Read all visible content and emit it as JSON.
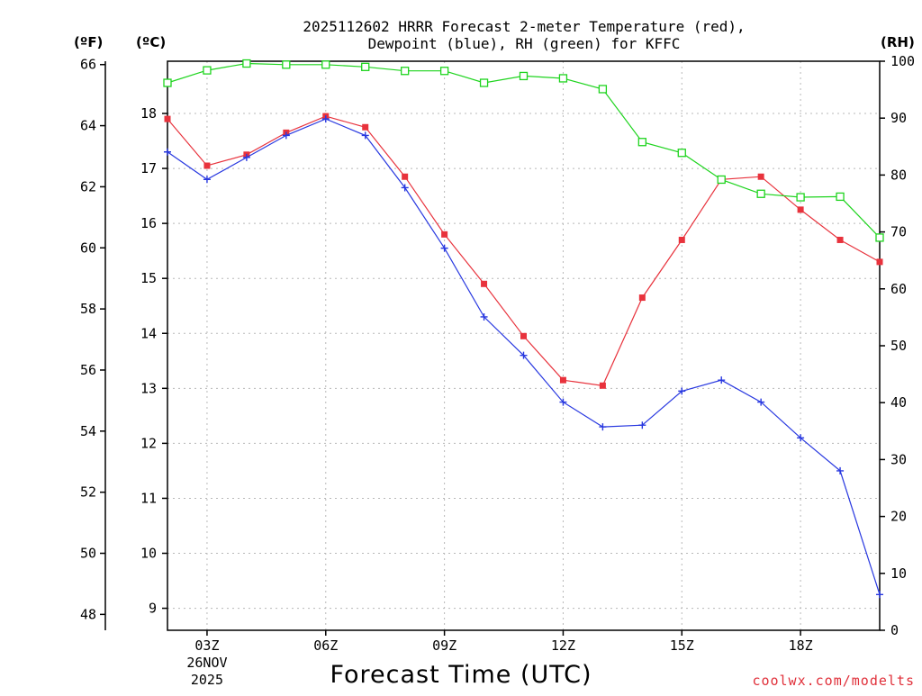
{
  "chart_data": {
    "type": "line",
    "title_lines": [
      "2025112602 HRRR Forecast 2-meter Temperature (red),",
      "Dewpoint (blue), RH (green) for KFFC"
    ],
    "xlabel": "Forecast Time (UTC)",
    "credit": "coolwx.com/modelts",
    "units": {
      "fahrenheit": "(ºF)",
      "celsius": "(ºC)",
      "rh": "(RH)"
    },
    "x": [
      2,
      3,
      4,
      5,
      6,
      7,
      8,
      9,
      10,
      11,
      12,
      13,
      14,
      15,
      16,
      17,
      18,
      19,
      20
    ],
    "xlim": [
      2,
      20
    ],
    "x_ticks": [
      {
        "x": 3,
        "label": "03Z",
        "sub1": "26NOV",
        "sub2": "2025"
      },
      {
        "x": 6,
        "label": "06Z"
      },
      {
        "x": 9,
        "label": "09Z"
      },
      {
        "x": 12,
        "label": "12Z"
      },
      {
        "x": 15,
        "label": "15Z"
      },
      {
        "x": 18,
        "label": "18Z"
      }
    ],
    "celsius_axis": {
      "ylim": [
        8.6,
        18.95
      ],
      "ticks": [
        "9",
        "10",
        "11",
        "12",
        "13",
        "14",
        "15",
        "16",
        "17",
        "18"
      ]
    },
    "fahrenheit_axis": {
      "ylim": [
        47.48,
        66.11
      ],
      "ticks": [
        "48",
        "50",
        "52",
        "54",
        "56",
        "58",
        "60",
        "62",
        "64",
        "66"
      ]
    },
    "rh_axis": {
      "ylim": [
        0,
        100
      ],
      "ticks": [
        "0",
        "10",
        "20",
        "30",
        "40",
        "50",
        "60",
        "70",
        "80",
        "90",
        "100"
      ]
    },
    "series": [
      {
        "name": "Temperature",
        "color": "#e8323c",
        "marker": "filled-square",
        "axis": "celsius",
        "values": [
          17.9,
          17.05,
          17.25,
          17.65,
          17.95,
          17.75,
          16.85,
          15.8,
          14.9,
          13.95,
          13.15,
          13.05,
          14.65,
          15.7,
          16.8,
          16.85,
          16.25,
          15.7,
          15.3
        ]
      },
      {
        "name": "Dewpoint",
        "color": "#2838e0",
        "marker": "plus",
        "axis": "celsius",
        "values": [
          17.3,
          16.8,
          17.2,
          17.6,
          17.9,
          17.6,
          16.65,
          15.55,
          14.3,
          13.6,
          12.75,
          12.3,
          12.33,
          12.95,
          13.15,
          12.75,
          12.1,
          11.5,
          9.25
        ]
      },
      {
        "name": "RH",
        "color": "#1ed41e",
        "marker": "open-square",
        "axis": "rh",
        "values": [
          96.2,
          98.4,
          99.6,
          99.4,
          99.4,
          99.0,
          98.3,
          98.3,
          96.2,
          97.4,
          97.0,
          95.1,
          85.8,
          83.9,
          79.2,
          76.7,
          76.1,
          76.2,
          69.0
        ]
      }
    ]
  }
}
